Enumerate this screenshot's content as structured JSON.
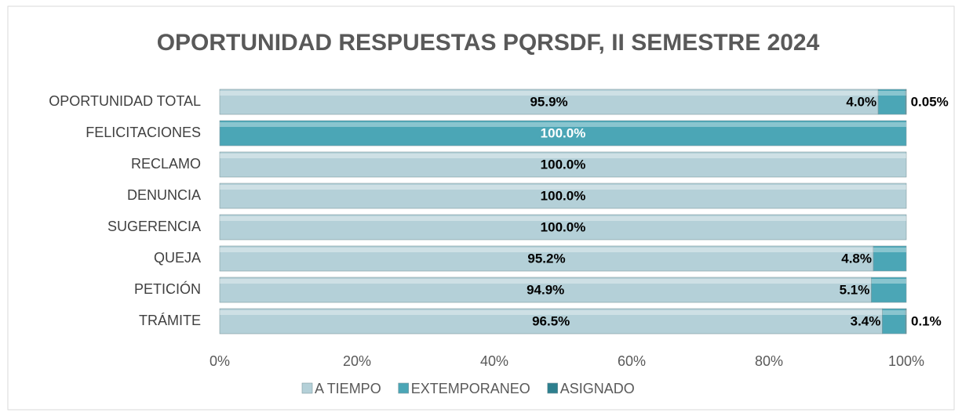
{
  "chart_data": {
    "type": "stacked-bar-horizontal",
    "title": "OPORTUNIDAD RESPUESTAS PQRSDF, II SEMESTRE 2024",
    "categories": [
      "OPORTUNIDAD TOTAL",
      "FELICITACIONES",
      "RECLAMO",
      "DENUNCIA",
      "SUGERENCIA",
      "QUEJA",
      "PETICIÓN",
      "TRÁMITE"
    ],
    "series": [
      {
        "name": "A TIEMPO",
        "color": "#b4d0d8",
        "values": [
          95.9,
          null,
          100,
          100,
          100,
          95.2,
          94.9,
          96.5
        ],
        "value_labels": [
          "95.9%",
          null,
          "100.0%",
          "100.0%",
          "100.0%",
          "95.2%",
          "94.9%",
          "96.5%"
        ]
      },
      {
        "name": "EXTEMPORANEO",
        "color": "#4ba6b6",
        "values": [
          4.0,
          100,
          null,
          null,
          null,
          4.8,
          5.1,
          3.4
        ],
        "value_labels": [
          "4.0%",
          "100.0%",
          null,
          null,
          null,
          "4.8%",
          "5.1%",
          "3.4%"
        ]
      },
      {
        "name": "ASIGNADO",
        "color": "#2d7f8e",
        "values": [
          0.05,
          null,
          null,
          null,
          null,
          null,
          null,
          0.1
        ],
        "value_labels": [
          "0.05%",
          null,
          null,
          null,
          null,
          null,
          null,
          "0.1%"
        ]
      }
    ],
    "xlim": [
      0,
      100
    ],
    "xticks": [
      {
        "value": 0,
        "label": "0%"
      },
      {
        "value": 20,
        "label": "20%"
      },
      {
        "value": 40,
        "label": "40%"
      },
      {
        "value": 60,
        "label": "60%"
      },
      {
        "value": 80,
        "label": "80%"
      },
      {
        "value": 100,
        "label": "100%"
      }
    ],
    "legend": "bottom"
  }
}
